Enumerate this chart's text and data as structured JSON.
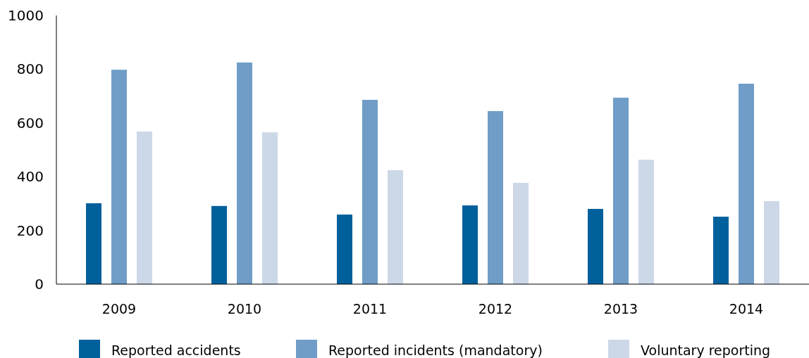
{
  "chart_data": {
    "type": "bar",
    "categories": [
      "2009",
      "2010",
      "2011",
      "2012",
      "2013",
      "2014"
    ],
    "series": [
      {
        "name": "Reported accidents",
        "color": "#00609c",
        "values": [
          301,
          291,
          259,
          293,
          280,
          251
        ]
      },
      {
        "name": "Reported incidents (mandatory)",
        "color": "#6f9dc8",
        "values": [
          798,
          825,
          686,
          644,
          694,
          746
        ]
      },
      {
        "name": "Voluntary reporting",
        "color": "#ccd8e8",
        "values": [
          568,
          565,
          424,
          377,
          463,
          309
        ]
      }
    ],
    "ylim": [
      0,
      1000
    ],
    "yticks": [
      0,
      200,
      400,
      600,
      800,
      1000
    ],
    "grid": false,
    "legend": "bottom"
  }
}
